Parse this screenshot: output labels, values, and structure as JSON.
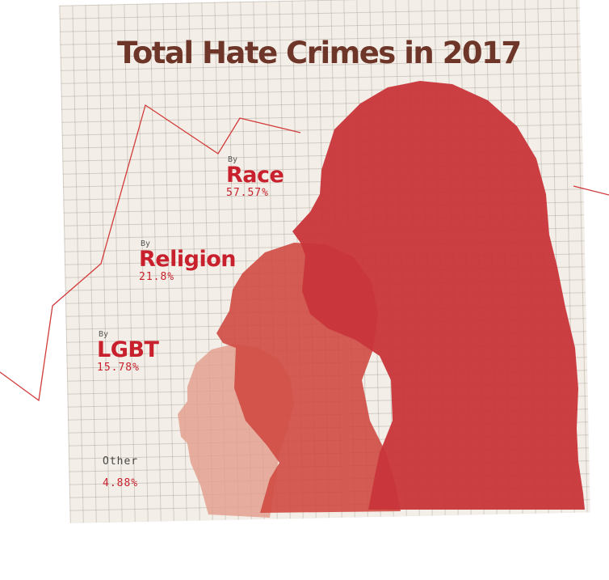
{
  "title": "Total Hate Crimes in 2017",
  "colors": {
    "accent_red": "#c8202c",
    "title_brown": "#6e3628",
    "paper": "#f3efe8",
    "race_fill": "#c9343a",
    "religion_fill": "#cf5248",
    "lgbt_fill": "#e3a08f"
  },
  "categories": {
    "race": {
      "prefix": "By",
      "label": "Race",
      "percent": "57.57%"
    },
    "religion": {
      "prefix": "By",
      "label": "Religion",
      "percent": "21.8%"
    },
    "lgbt": {
      "prefix": "By",
      "label": "LGBT",
      "percent": "15.78%"
    },
    "other": {
      "label": "Other",
      "percent": "4.88%"
    }
  },
  "chart_data": {
    "type": "pie",
    "title": "Total Hate Crimes in 2017",
    "categories": [
      "Race",
      "Religion",
      "LGBT",
      "Other"
    ],
    "values": [
      57.57,
      21.8,
      15.78,
      4.88
    ],
    "unit": "%"
  }
}
